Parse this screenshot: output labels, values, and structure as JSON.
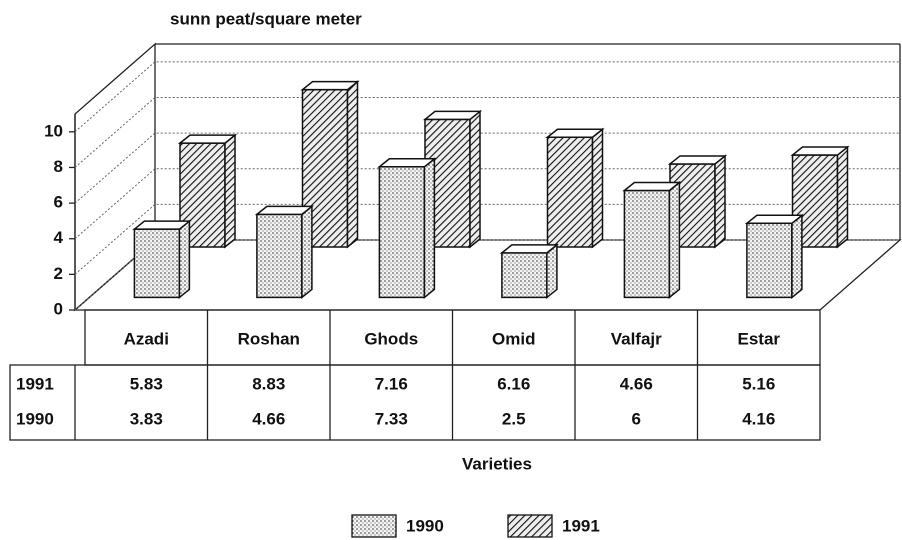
{
  "chart_data": {
    "type": "bar3d",
    "y_label": "sunn peat/square meter",
    "x_label": "Varieties",
    "categories": [
      "Azadi",
      "Roshan",
      "Ghods",
      "Omid",
      "Valfajr",
      "Estar"
    ],
    "series": [
      {
        "name": "1991",
        "pattern": "hatch",
        "values": [
          5.83,
          8.83,
          7.16,
          6.16,
          4.66,
          5.16
        ]
      },
      {
        "name": "1990",
        "pattern": "dots",
        "values": [
          3.83,
          4.66,
          7.33,
          2.5,
          6,
          4.16
        ]
      }
    ],
    "ylim": [
      0,
      11
    ],
    "yticks": [
      0,
      2,
      4,
      6,
      8,
      10
    ],
    "grid": true
  }
}
